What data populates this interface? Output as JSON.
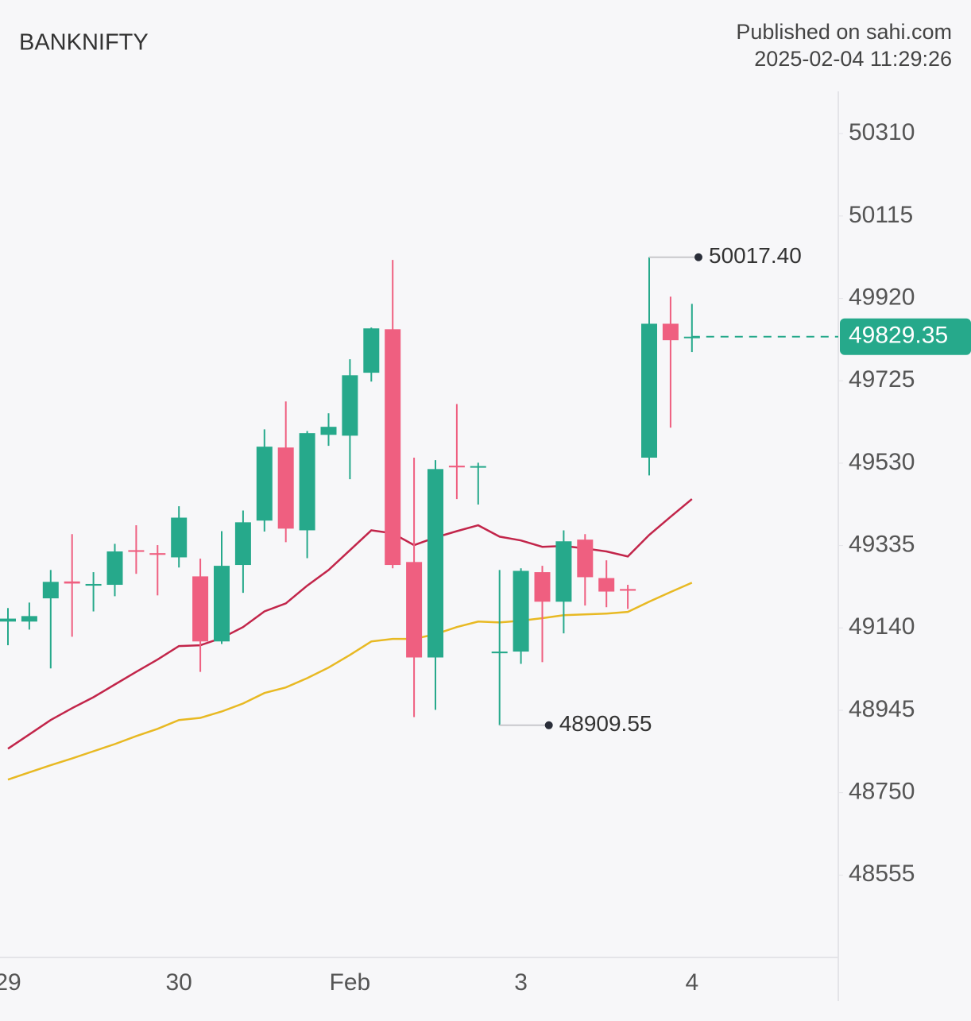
{
  "chart_data": {
    "type": "candlestick",
    "title": "BANKNIFTY",
    "source": "Published on sahi.com",
    "timestamp": "2025-02-04 11:29:26",
    "categories": [
      "29",
      null,
      null,
      null,
      null,
      null,
      null,
      null,
      "30",
      null,
      null,
      null,
      null,
      null,
      null,
      null,
      "Feb",
      null,
      null,
      null,
      null,
      null,
      null,
      null,
      "3",
      null,
      null,
      null,
      null,
      null,
      null,
      null,
      "4"
    ],
    "open": [
      49155,
      49155,
      49210,
      49250,
      49240,
      49242,
      49324,
      49317,
      49307,
      49262,
      49108,
      49289,
      49394,
      49567,
      49371,
      49597,
      49595,
      49744,
      49847,
      49296,
      49070,
      49524,
      49520,
      49080,
      49084,
      49272,
      49202,
      49349,
      49258,
      49232,
      49543,
      49860,
      49826
    ],
    "high": [
      49187,
      49200,
      49277,
      49362,
      49272,
      49339,
      49383,
      49336,
      49428,
      49304,
      49369,
      49418,
      49610,
      49676,
      49606,
      49648,
      49776,
      49851,
      50011,
      49543,
      49537,
      49670,
      49531,
      49277,
      49281,
      49287,
      49371,
      49362,
      49300,
      49242,
      50017.4,
      49924,
      49907
    ],
    "low": [
      49099,
      49136,
      49044,
      49119,
      49179,
      49215,
      49268,
      49217,
      49283,
      49036,
      49102,
      49223,
      49368,
      49343,
      49305,
      49571,
      49492,
      49723,
      49281,
      48929,
      48946,
      49445,
      49432,
      48909.55,
      49055,
      49059,
      49127,
      49193,
      49189,
      49185,
      49501,
      49614,
      49793
    ],
    "close": [
      49162,
      49168,
      49249,
      49245,
      49244,
      49321,
      49320,
      49313,
      49401,
      49108,
      49287,
      49390,
      49569,
      49375,
      49601,
      49616,
      49738,
      49849,
      49289,
      49070,
      49516,
      49520,
      49523,
      49084,
      49275,
      49202,
      49345,
      49260,
      49226,
      49228,
      49860,
      49821,
      49829.35
    ],
    "high_labels": [
      null,
      null,
      null,
      null,
      null,
      null,
      null,
      null,
      null,
      null,
      null,
      null,
      null,
      null,
      null,
      null,
      null,
      null,
      null,
      null,
      null,
      null,
      null,
      null,
      null,
      null,
      null,
      null,
      null,
      null,
      "50017.40",
      null,
      null
    ],
    "low_labels": [
      null,
      null,
      null,
      null,
      null,
      null,
      null,
      null,
      null,
      null,
      null,
      null,
      null,
      null,
      null,
      null,
      null,
      null,
      null,
      null,
      null,
      null,
      null,
      "48909.55",
      null,
      null,
      null,
      null,
      null,
      null,
      null,
      null,
      null
    ],
    "up_color": "#26a98b",
    "down_color": "#ef5f80",
    "overlays": [
      {
        "color": "#c2254a",
        "values": [
          48854,
          48888,
          48922,
          48950,
          48976,
          49006,
          49036,
          49065,
          49097,
          49099,
          49116,
          49142,
          49179,
          49198,
          49240,
          49277,
          49324,
          49371,
          49364,
          49336,
          49354,
          49369,
          49383,
          49356,
          49347,
          49332,
          49334,
          49328,
          49321,
          49309,
          49360,
          49403,
          49445
        ]
      },
      {
        "color": "#e8b923",
        "values": [
          48781,
          48798,
          48815,
          48831,
          48848,
          48865,
          48884,
          48901,
          48922,
          48927,
          48942,
          48961,
          48986,
          48999,
          49021,
          49046,
          49076,
          49108,
          49114,
          49114,
          49125,
          49142,
          49155,
          49153,
          49157,
          49163,
          49170,
          49172,
          49174,
          49178,
          49202,
          49225,
          49247
        ]
      }
    ],
    "ylim": [
      48360,
      50410
    ],
    "yticks": [
      48555,
      48750,
      48945,
      49140,
      49335,
      49530,
      49725,
      49920,
      50115,
      50310
    ],
    "grid": false
  }
}
